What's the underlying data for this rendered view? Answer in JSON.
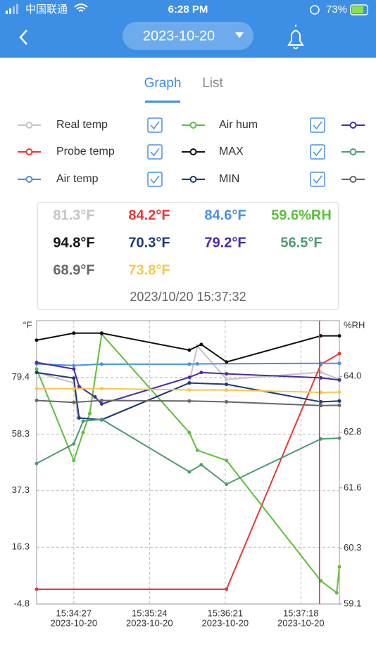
{
  "status_bar": {
    "carrier": "中国联通",
    "time": "6:28 PM",
    "battery": "73%"
  },
  "header": {
    "date": "2023-10-20"
  },
  "tabs": {
    "active": "Graph",
    "other": "List"
  },
  "chart_data": {
    "type": "line",
    "ylabel": "°F",
    "y2label": "%RH",
    "xlim": [
      "15:33:59",
      "15:37:47"
    ],
    "xticks": [
      "15:34:27",
      "15:35:24",
      "15:36:21",
      "15:37:18"
    ],
    "xtick_dates": [
      "2023-10-20",
      "2023-10-20",
      "2023-10-20",
      "2023-10-20"
    ],
    "ylim": [
      -4.8,
      100.45
    ],
    "yticks": [
      -4.8,
      16.3,
      37.3,
      58.3,
      79.4
    ],
    "y2lim": [
      59.1,
      65.2
    ],
    "y2ticks": [
      59.1,
      60.3,
      61.6,
      62.8,
      {
        "value": 64,
        "label": "64.0"
      }
    ],
    "grid": true,
    "cursor": "15:37:32",
    "readout_time": "2023/10/20 15:37:32",
    "series": [
      {
        "name": "Real temp",
        "color": "#c4c4c4",
        "checked": true,
        "readout": "81.3°F",
        "x": [
          "15:33:59",
          "15:34:27",
          "15:34:30",
          "15:34:48",
          "15:35:54",
          "15:36:00",
          "15:36:22",
          "15:37:33",
          "15:37:47"
        ],
        "values": [
          81.2,
          77.3,
          64.3,
          63.8,
          77.3,
          91.1,
          78.6,
          81.3,
          78.6
        ]
      },
      {
        "name": "Probe temp",
        "color": "#e53935",
        "checked": true,
        "readout": "84.2°F",
        "x": [
          "15:33:59",
          "15:36:22",
          "15:37:33",
          "15:37:47"
        ],
        "values": [
          0.7,
          0.7,
          84.2,
          88.2
        ]
      },
      {
        "name": "Air temp",
        "color": "#4a8fe0",
        "checked": true,
        "readout": "84.6°F",
        "x": [
          "15:33:59",
          "15:34:27",
          "15:34:48",
          "15:35:54",
          "15:36:00",
          "15:37:33",
          "15:37:47"
        ],
        "values": [
          84.4,
          83.8,
          84.3,
          84.3,
          84.4,
          84.6,
          84.6
        ]
      },
      {
        "name": "Air hum",
        "color": "#5cbf3a",
        "checked": true,
        "readout": "59.6%RH",
        "axis": "y2",
        "x": [
          "15:33:59",
          "15:34:27",
          "15:34:34",
          "15:34:39",
          "15:34:48",
          "15:35:54",
          "15:36:00",
          "15:36:22",
          "15:37:33",
          "15:37:45",
          "15:37:47"
        ],
        "values": [
          64.16,
          62.19,
          62.79,
          63.2,
          64.91,
          62.79,
          62.41,
          62.19,
          59.6,
          59.34,
          59.9
        ]
      },
      {
        "name": "MAX",
        "color": "#111111",
        "checked": true,
        "readout": "94.8°F",
        "x": [
          "15:33:59",
          "15:34:27",
          "15:34:48",
          "15:35:54",
          "15:36:03",
          "15:36:22",
          "15:37:33",
          "15:37:47"
        ],
        "values": [
          93.2,
          95.8,
          95.8,
          89.5,
          91.6,
          85.1,
          94.8,
          94.8
        ]
      },
      {
        "name": "MIN",
        "color": "#1e3a78",
        "checked": true,
        "readout": "70.3°F",
        "x": [
          "15:33:59",
          "15:34:27",
          "15:34:31",
          "15:34:48",
          "15:35:54",
          "15:36:22",
          "15:37:33",
          "15:37:47"
        ],
        "values": [
          81.2,
          79.1,
          64.3,
          63.6,
          77.3,
          76.8,
          70.3,
          70.6
        ]
      },
      {
        "color": "#4b2aa6",
        "readout": "79.2°F",
        "x": [
          "15:33:59",
          "15:34:27",
          "15:34:31",
          "15:34:43",
          "15:34:48",
          "15:35:54",
          "15:36:03",
          "15:36:22",
          "15:37:33",
          "15:37:47"
        ],
        "values": [
          84.9,
          82.5,
          76.0,
          72.1,
          69.5,
          79.4,
          81.2,
          80.7,
          79.2,
          78.4
        ]
      },
      {
        "color": "#4e9a73",
        "readout": "56.5°F",
        "x": [
          "15:33:59",
          "15:34:27",
          "15:34:34",
          "15:34:48",
          "15:35:54",
          "15:36:03",
          "15:36:22",
          "15:37:33",
          "15:37:47"
        ],
        "values": [
          47.4,
          54.7,
          63.1,
          63.8,
          44.3,
          46.9,
          39.7,
          56.5,
          56.8
        ]
      },
      {
        "color": "#666666",
        "readout": "68.9°F",
        "x": [
          "15:33:59",
          "15:34:27",
          "15:34:48",
          "15:35:54",
          "15:36:22",
          "15:37:33",
          "15:37:47"
        ],
        "values": [
          70.8,
          70.1,
          70.8,
          70.6,
          70.3,
          68.9,
          69.0
        ]
      },
      {
        "color": "#f4c84a",
        "readout": "73.8°F",
        "legend": false,
        "x": [
          "15:33:59",
          "15:34:27",
          "15:34:48",
          "15:35:54",
          "15:36:22",
          "15:37:33",
          "15:37:47"
        ],
        "values": [
          75.2,
          75.2,
          75.2,
          74.7,
          74.7,
          73.8,
          73.9
        ]
      }
    ]
  }
}
